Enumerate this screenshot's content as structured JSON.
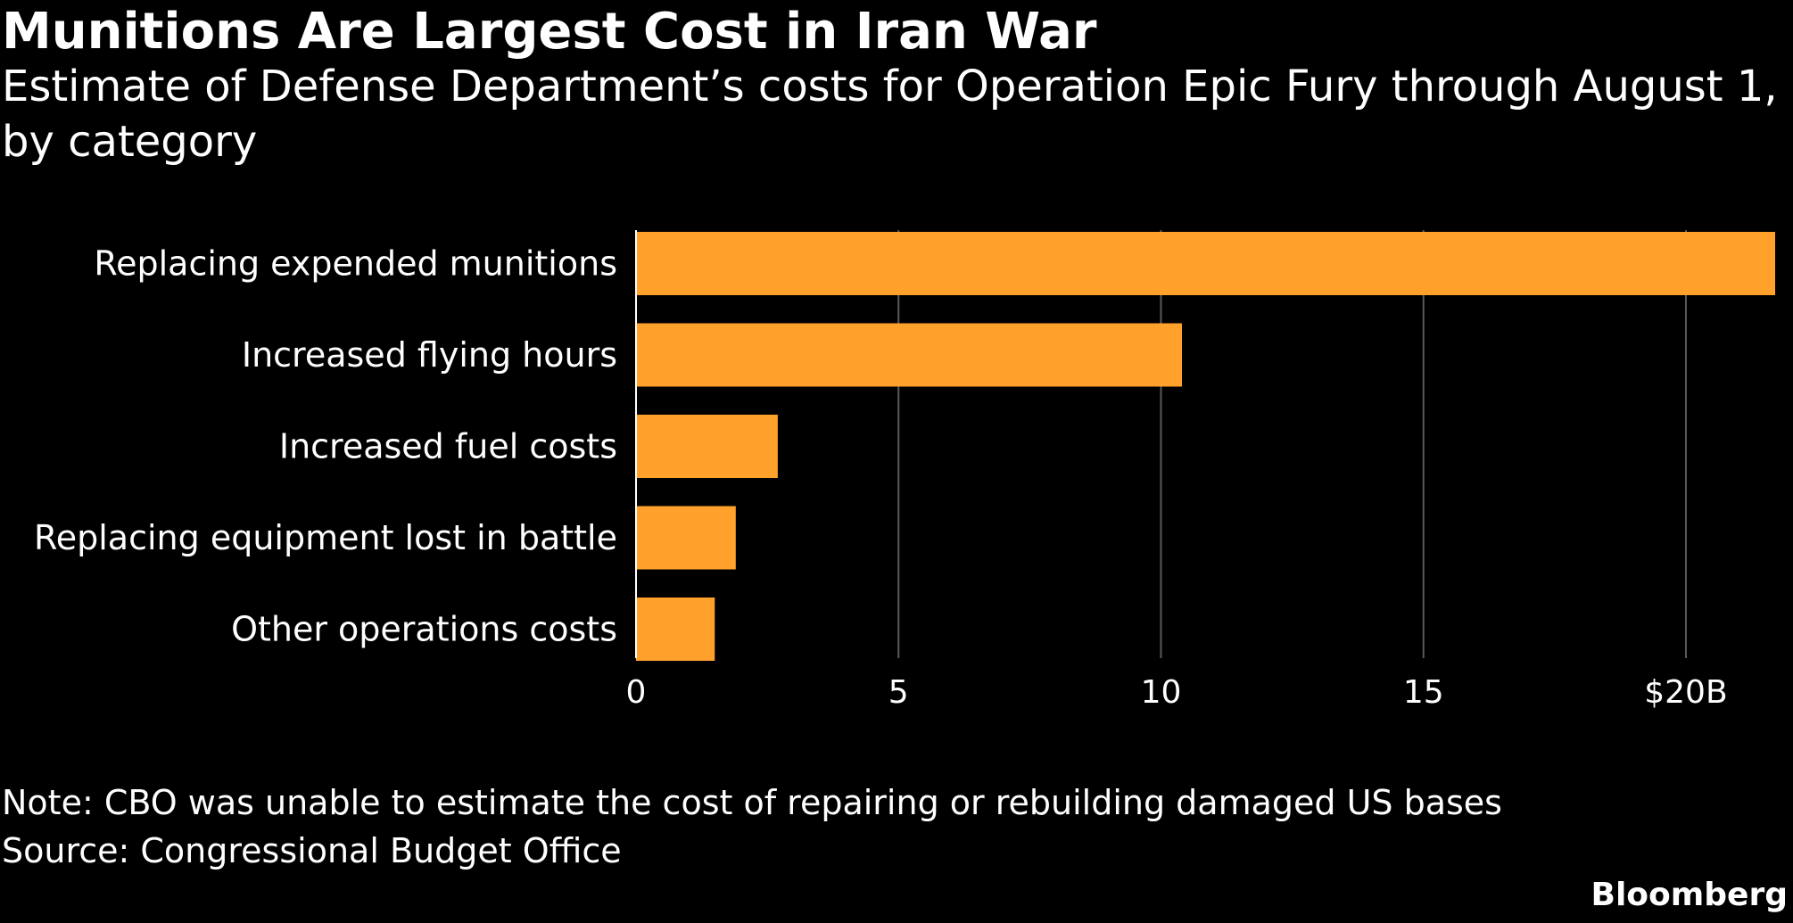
{
  "header": {
    "title": "Munitions Are Largest Cost in Iran War",
    "subtitle": "Estimate of Defense Department’s costs for Operation Epic Fury through August 1, by category"
  },
  "footer": {
    "note": "Note: CBO was unable to estimate the cost of repairing or rebuilding damaged US bases",
    "source": "Source: Congressional Budget Office",
    "brand": "Bloomberg"
  },
  "colors": {
    "background": "#000000",
    "bar": "#FFA12B",
    "grid": "#5a5a5a",
    "text": "#ffffff"
  },
  "chart_data": {
    "type": "bar",
    "orientation": "horizontal",
    "categories": [
      "Replacing expended munitions",
      "Increased flying hours",
      "Increased fuel costs",
      "Replacing equipment lost in battle",
      "Other operations costs"
    ],
    "values": [
      21.7,
      10.4,
      2.7,
      1.9,
      1.5
    ],
    "xlim": [
      0,
      21.7
    ],
    "x_ticks": [
      0,
      5,
      10,
      15,
      20
    ],
    "x_tick_labels": [
      "0",
      "5",
      "10",
      "15",
      "$20B"
    ],
    "unit": "billions of dollars",
    "grid": true,
    "legend": "none"
  }
}
